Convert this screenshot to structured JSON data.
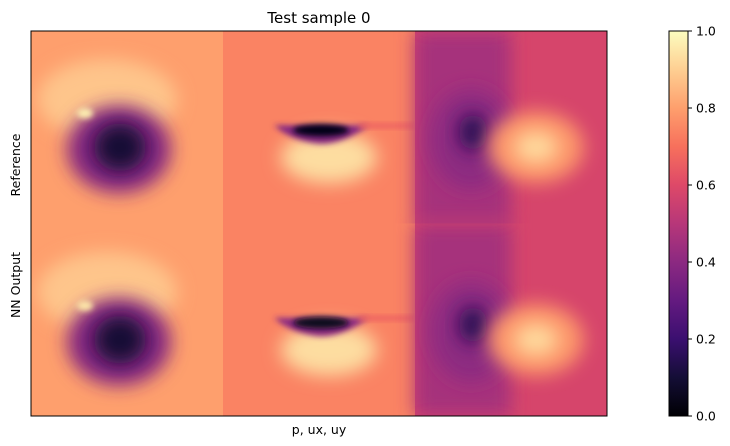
{
  "chart_data": {
    "type": "heatmap",
    "title": "Test sample 0",
    "xlabel": "p, ux, uy",
    "row_labels": [
      "Reference",
      "NN Output"
    ],
    "column_fields": [
      "p",
      "ux",
      "uy"
    ],
    "colormap": "magma",
    "colorbar": {
      "range": [
        0.0,
        1.0
      ],
      "ticks": [
        0.0,
        0.2,
        0.4,
        0.6,
        0.8,
        1.0
      ],
      "tick_labels": [
        "0.0",
        "0.2",
        "0.4",
        "0.6",
        "0.8",
        "1.0"
      ]
    },
    "panels": [
      {
        "row": "Reference",
        "field": "p",
        "background": 0.8,
        "low_region": 0.1,
        "high_region": 0.97
      },
      {
        "row": "Reference",
        "field": "ux",
        "background": 0.74,
        "low_region": 0.03,
        "high_region": 0.93
      },
      {
        "row": "Reference",
        "field": "uy",
        "background": 0.58,
        "low_region": 0.15,
        "high_region": 0.92
      },
      {
        "row": "NN Output",
        "field": "p",
        "background": 0.8,
        "low_region": 0.1,
        "high_region": 0.95
      },
      {
        "row": "NN Output",
        "field": "ux",
        "background": 0.74,
        "low_region": 0.05,
        "high_region": 0.93
      },
      {
        "row": "NN Output",
        "field": "uy",
        "background": 0.58,
        "low_region": 0.15,
        "high_region": 0.92
      }
    ],
    "grid": false,
    "xticks": false,
    "yticks": false
  }
}
